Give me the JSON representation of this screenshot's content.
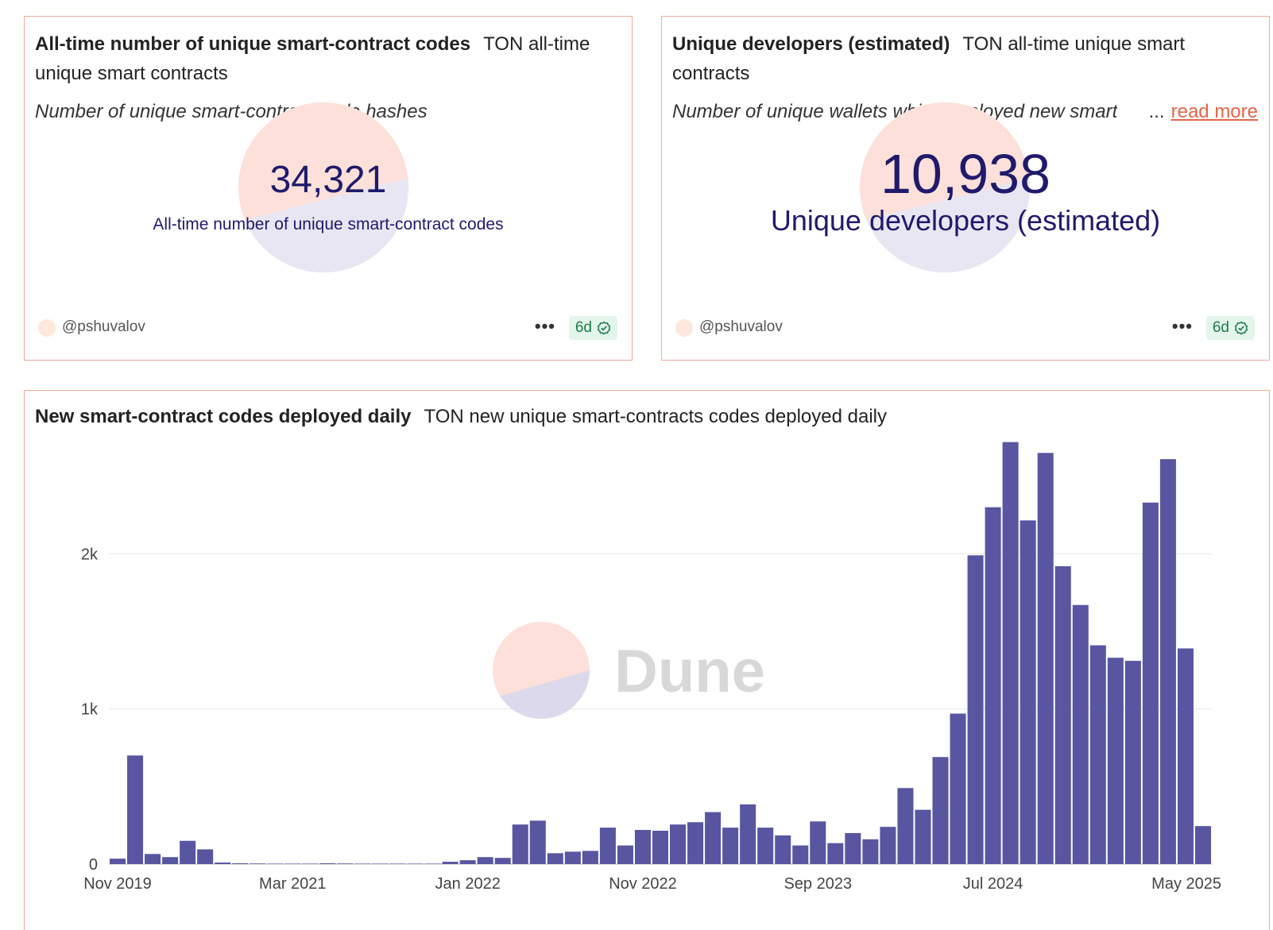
{
  "cards": [
    {
      "title": "All-time number of unique smart-contract codes",
      "subtitle": "TON all-time unique smart contracts",
      "description": "Number of unique smart-contract code hashes",
      "value": "34,321",
      "label": "All-time number of unique smart-contract codes",
      "owner": "@pshuvalov",
      "age": "6d",
      "menu": "•••"
    },
    {
      "title": "Unique developers (estimated)",
      "subtitle": "TON all-time unique smart contracts",
      "description": "Number of unique wallets which deployed new smart",
      "ellipsis": "...",
      "read_more": "read more",
      "value": "10,938",
      "label": "Unique developers (estimated)",
      "owner": "@pshuvalov",
      "age": "6d",
      "menu": "•••"
    }
  ],
  "chart_card": {
    "title": "New smart-contract codes deployed daily",
    "subtitle": "TON new unique smart-contracts codes deployed daily",
    "watermark": "Dune"
  },
  "colors": {
    "accent": "#e0664a",
    "bar": "#5856a0",
    "counter_text": "#1f1a6b",
    "card_border": "#f4a99a",
    "logo_top": "#fde0d9",
    "logo_bottom": "#e8e6f2"
  },
  "chart_data": {
    "type": "bar",
    "title": "New smart-contract codes deployed daily",
    "xlabel": "",
    "ylabel": "",
    "ylim": [
      0,
      2800
    ],
    "yticks": [
      0,
      1000,
      2000
    ],
    "ytick_labels": [
      "0",
      "1k",
      "2k"
    ],
    "xtick_labels": [
      "Nov 2019",
      "Mar 2021",
      "Jan 2022",
      "Nov 2022",
      "Sep 2023",
      "Jul 2024",
      "May 2025"
    ],
    "xtick_index": [
      0,
      10,
      20,
      30,
      40,
      50,
      60
    ],
    "grid": true,
    "values": [
      35,
      700,
      65,
      45,
      150,
      95,
      10,
      5,
      4,
      3,
      3,
      3,
      5,
      4,
      3,
      3,
      3,
      3,
      3,
      15,
      25,
      45,
      40,
      255,
      280,
      70,
      80,
      85,
      235,
      120,
      220,
      215,
      255,
      270,
      335,
      235,
      385,
      235,
      185,
      120,
      275,
      135,
      200,
      160,
      240,
      490,
      350,
      690,
      970,
      1990,
      2300,
      2720,
      2215,
      2650,
      1920,
      1670,
      1410,
      1330,
      1310,
      2330,
      2610,
      1390,
      245
    ]
  }
}
